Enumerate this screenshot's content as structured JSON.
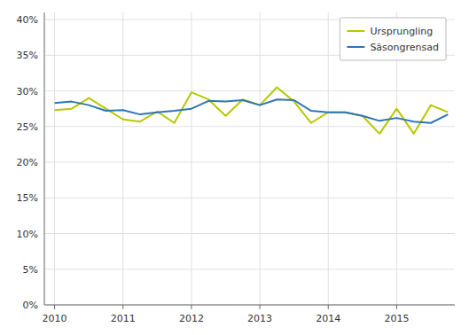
{
  "chart_data": {
    "type": "line",
    "x": [
      2010,
      2010.25,
      2010.5,
      2010.75,
      2011,
      2011.25,
      2011.5,
      2011.75,
      2012,
      2012.25,
      2012.5,
      2012.75,
      2013,
      2013.25,
      2013.5,
      2013.75,
      2014,
      2014.25,
      2014.5,
      2014.75,
      2015,
      2015.25,
      2015.5,
      2015.75
    ],
    "series": [
      {
        "name": "Ursprungling",
        "color": "#b5c900",
        "values": [
          27.3,
          27.5,
          29.0,
          27.5,
          26.0,
          25.7,
          27.1,
          25.5,
          29.8,
          28.8,
          26.5,
          28.8,
          28.0,
          30.5,
          28.5,
          25.5,
          27.0,
          27.0,
          26.5,
          24.0,
          27.5,
          24.0,
          28.0,
          27.0
        ]
      },
      {
        "name": "Säsongrensad",
        "color": "#2e75b6",
        "values": [
          28.3,
          28.5,
          28.0,
          27.2,
          27.3,
          26.7,
          27.0,
          27.2,
          27.5,
          28.6,
          28.5,
          28.7,
          28.0,
          28.8,
          28.7,
          27.2,
          27.0,
          27.0,
          26.5,
          25.8,
          26.2,
          25.7,
          25.5,
          26.7
        ]
      }
    ],
    "xlim": [
      2009.85,
      2015.85
    ],
    "xticks": [
      2010,
      2011,
      2012,
      2013,
      2014,
      2015
    ],
    "ylim": [
      0,
      41
    ],
    "yticks": [
      {
        "value": 0,
        "label": "0%"
      },
      {
        "value": 5,
        "label": "5%"
      },
      {
        "value": 10,
        "label": "10%"
      },
      {
        "value": 15,
        "label": "15%"
      },
      {
        "value": 20,
        "label": "20%"
      },
      {
        "value": 25,
        "label": "25%"
      },
      {
        "value": 30,
        "label": "30%"
      },
      {
        "value": 35,
        "label": "35%"
      },
      {
        "value": 40,
        "label": "40%"
      }
    ],
    "grid": true,
    "legend": "upper right"
  }
}
